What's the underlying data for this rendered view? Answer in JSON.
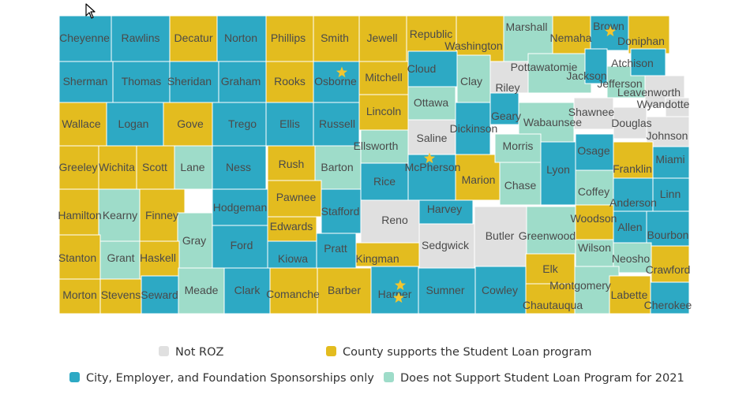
{
  "colors": {
    "not_roz": "#e0e0e0",
    "county_supports": "#e3bc1f",
    "sponsorships_only": "#2da9c4",
    "does_not_support": "#9edcc9",
    "border": "#ffffff",
    "star": "#f2c62f",
    "label": "#4a4a4a"
  },
  "legend": [
    {
      "key": "not_roz",
      "label": "Not ROZ"
    },
    {
      "key": "county_supports",
      "label": "County supports the Student Loan program"
    },
    {
      "key": "sponsorships_only",
      "label": "City, Employer, and Foundation Sponsorships only"
    },
    {
      "key": "does_not_support",
      "label": "Does not Support Student Loan Program for 2021"
    }
  ],
  "map": {
    "state": "Kansas",
    "counties": [
      {
        "name": "Cheyenne",
        "status": "sponsorships_only"
      },
      {
        "name": "Rawlins",
        "status": "sponsorships_only"
      },
      {
        "name": "Decatur",
        "status": "county_supports"
      },
      {
        "name": "Norton",
        "status": "sponsorships_only"
      },
      {
        "name": "Phillips",
        "status": "county_supports"
      },
      {
        "name": "Smith",
        "status": "county_supports"
      },
      {
        "name": "Jewell",
        "status": "county_supports"
      },
      {
        "name": "Republic",
        "status": "county_supports"
      },
      {
        "name": "Washington",
        "status": "county_supports"
      },
      {
        "name": "Marshall",
        "status": "does_not_support"
      },
      {
        "name": "Nemaha",
        "status": "county_supports"
      },
      {
        "name": "Brown",
        "status": "sponsorships_only"
      },
      {
        "name": "Doniphan",
        "status": "county_supports"
      },
      {
        "name": "Sherman",
        "status": "sponsorships_only"
      },
      {
        "name": "Thomas",
        "status": "sponsorships_only"
      },
      {
        "name": "Sheridan",
        "status": "sponsorships_only"
      },
      {
        "name": "Graham",
        "status": "sponsorships_only"
      },
      {
        "name": "Rooks",
        "status": "county_supports"
      },
      {
        "name": "Osborne",
        "status": "sponsorships_only"
      },
      {
        "name": "Mitchell",
        "status": "county_supports"
      },
      {
        "name": "Cloud",
        "status": "sponsorships_only"
      },
      {
        "name": "Clay",
        "status": "does_not_support"
      },
      {
        "name": "Riley",
        "status": "not_roz"
      },
      {
        "name": "Pottawatomie",
        "status": "does_not_support"
      },
      {
        "name": "Jackson",
        "status": "sponsorships_only"
      },
      {
        "name": "Jefferson",
        "status": "does_not_support"
      },
      {
        "name": "Atchison",
        "status": "sponsorships_only"
      },
      {
        "name": "Leavenworth",
        "status": "not_roz"
      },
      {
        "name": "Wyandotte",
        "status": "not_roz"
      },
      {
        "name": "Wallace",
        "status": "county_supports"
      },
      {
        "name": "Logan",
        "status": "sponsorships_only"
      },
      {
        "name": "Gove",
        "status": "county_supports"
      },
      {
        "name": "Trego",
        "status": "sponsorships_only"
      },
      {
        "name": "Ellis",
        "status": "sponsorships_only"
      },
      {
        "name": "Russell",
        "status": "sponsorships_only"
      },
      {
        "name": "Lincoln",
        "status": "county_supports"
      },
      {
        "name": "Ottawa",
        "status": "does_not_support"
      },
      {
        "name": "Dickinson",
        "status": "sponsorships_only"
      },
      {
        "name": "Geary",
        "status": "sponsorships_only"
      },
      {
        "name": "Wabaunsee",
        "status": "does_not_support"
      },
      {
        "name": "Shawnee",
        "status": "not_roz"
      },
      {
        "name": "Douglas",
        "status": "not_roz"
      },
      {
        "name": "Johnson",
        "status": "not_roz"
      },
      {
        "name": "Greeley",
        "status": "county_supports"
      },
      {
        "name": "Wichita",
        "status": "county_supports"
      },
      {
        "name": "Scott",
        "status": "county_supports"
      },
      {
        "name": "Lane",
        "status": "does_not_support"
      },
      {
        "name": "Ness",
        "status": "sponsorships_only"
      },
      {
        "name": "Rush",
        "status": "county_supports"
      },
      {
        "name": "Barton",
        "status": "does_not_support"
      },
      {
        "name": "Ellsworth",
        "status": "does_not_support"
      },
      {
        "name": "Saline",
        "status": "not_roz"
      },
      {
        "name": "Rice",
        "status": "sponsorships_only"
      },
      {
        "name": "McPherson",
        "status": "sponsorships_only"
      },
      {
        "name": "Marion",
        "status": "county_supports"
      },
      {
        "name": "Morris",
        "status": "does_not_support"
      },
      {
        "name": "Chase",
        "status": "does_not_support"
      },
      {
        "name": "Lyon",
        "status": "sponsorships_only"
      },
      {
        "name": "Osage",
        "status": "sponsorships_only"
      },
      {
        "name": "Franklin",
        "status": "county_supports"
      },
      {
        "name": "Miami",
        "status": "sponsorships_only"
      },
      {
        "name": "Linn",
        "status": "sponsorships_only"
      },
      {
        "name": "Coffey",
        "status": "does_not_support"
      },
      {
        "name": "Anderson",
        "status": "sponsorships_only"
      },
      {
        "name": "Hamilton",
        "status": "county_supports"
      },
      {
        "name": "Kearny",
        "status": "does_not_support"
      },
      {
        "name": "Finney",
        "status": "county_supports"
      },
      {
        "name": "Hodgeman",
        "status": "sponsorships_only"
      },
      {
        "name": "Pawnee",
        "status": "county_supports"
      },
      {
        "name": "Stafford",
        "status": "sponsorships_only"
      },
      {
        "name": "Reno",
        "status": "not_roz"
      },
      {
        "name": "Harvey",
        "status": "sponsorships_only"
      },
      {
        "name": "Sedgwick",
        "status": "not_roz"
      },
      {
        "name": "Butler",
        "status": "not_roz"
      },
      {
        "name": "Greenwood",
        "status": "does_not_support"
      },
      {
        "name": "Woodson",
        "status": "county_supports"
      },
      {
        "name": "Allen",
        "status": "sponsorships_only"
      },
      {
        "name": "Bourbon",
        "status": "sponsorships_only"
      },
      {
        "name": "Gray",
        "status": "does_not_support"
      },
      {
        "name": "Ford",
        "status": "sponsorships_only"
      },
      {
        "name": "Edwards",
        "status": "county_supports"
      },
      {
        "name": "Kiowa",
        "status": "sponsorships_only"
      },
      {
        "name": "Pratt",
        "status": "sponsorships_only"
      },
      {
        "name": "Kingman",
        "status": "county_supports"
      },
      {
        "name": "Stanton",
        "status": "county_supports"
      },
      {
        "name": "Grant",
        "status": "does_not_support"
      },
      {
        "name": "Haskell",
        "status": "county_supports"
      },
      {
        "name": "Wilson",
        "status": "does_not_support"
      },
      {
        "name": "Neosho",
        "status": "does_not_support"
      },
      {
        "name": "Crawford",
        "status": "county_supports"
      },
      {
        "name": "Morton",
        "status": "county_supports"
      },
      {
        "name": "Stevens",
        "status": "county_supports"
      },
      {
        "name": "Seward",
        "status": "sponsorships_only"
      },
      {
        "name": "Meade",
        "status": "does_not_support"
      },
      {
        "name": "Clark",
        "status": "sponsorships_only"
      },
      {
        "name": "Comanche",
        "status": "county_supports"
      },
      {
        "name": "Barber",
        "status": "county_supports"
      },
      {
        "name": "Harper",
        "status": "sponsorships_only"
      },
      {
        "name": "Sumner",
        "status": "sponsorships_only"
      },
      {
        "name": "Cowley",
        "status": "sponsorships_only"
      },
      {
        "name": "Elk",
        "status": "county_supports"
      },
      {
        "name": "Chautauqua",
        "status": "county_supports"
      },
      {
        "name": "Montgomery",
        "status": "does_not_support"
      },
      {
        "name": "Labette",
        "status": "county_supports"
      },
      {
        "name": "Cherokee",
        "status": "sponsorships_only"
      }
    ],
    "stars": [
      {
        "county": "Brown"
      },
      {
        "county": "Osborne"
      },
      {
        "county": "McPherson"
      },
      {
        "county": "Harper"
      },
      {
        "county": "Harper"
      }
    ]
  }
}
